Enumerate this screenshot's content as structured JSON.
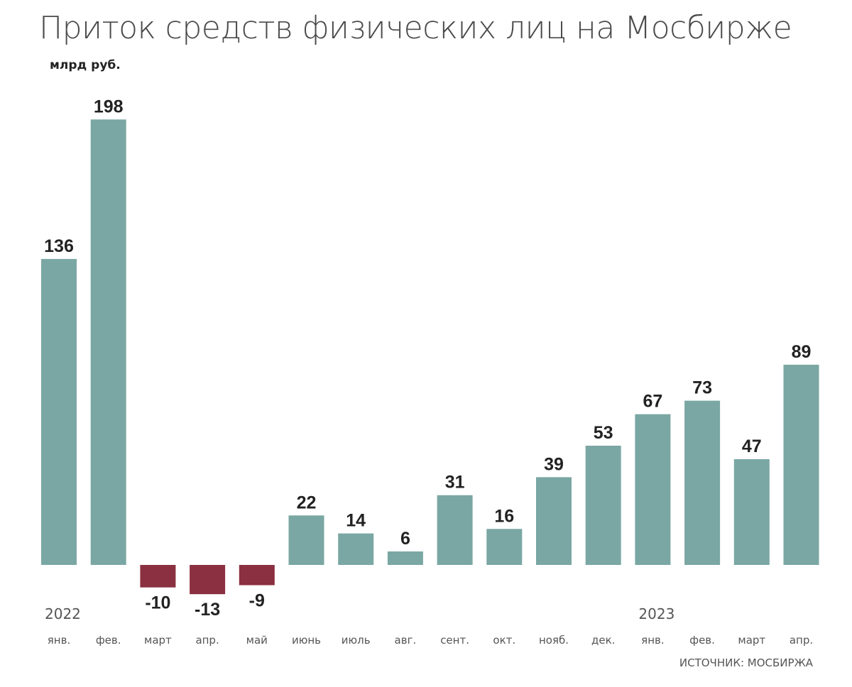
{
  "chart_data": {
    "type": "bar",
    "title": "Приток средств физических лиц на Мосбирже",
    "subtitle": "млрд руб.",
    "categories": [
      "янв.",
      "фев.",
      "март",
      "апр.",
      "май",
      "июнь",
      "июль",
      "авг.",
      "сент.",
      "окт.",
      "нояб.",
      "дек.",
      "янв.",
      "фев.",
      "март",
      "апр."
    ],
    "values": [
      136,
      198,
      -10,
      -13,
      -9,
      22,
      14,
      6,
      31,
      16,
      39,
      53,
      67,
      73,
      47,
      89
    ],
    "year_labels": [
      {
        "index": 0,
        "label": "2022"
      },
      {
        "index": 12,
        "label": "2023"
      }
    ],
    "ylim": [
      -13,
      198
    ],
    "grid": false,
    "legend": "none",
    "colors": {
      "positive": "#7aa7a3",
      "negative": "#8a3040"
    },
    "source": "ИСТОЧНИК: МОСБИРЖА"
  }
}
